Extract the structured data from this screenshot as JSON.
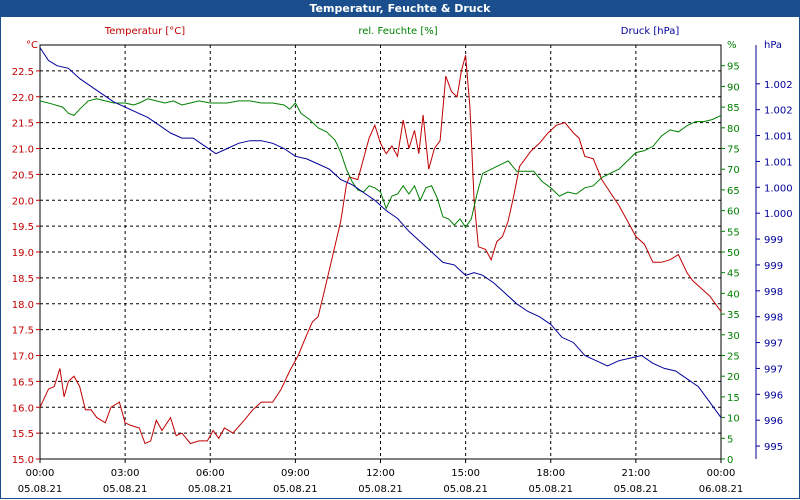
{
  "window": {
    "title": "Temperatur, Feuchte & Druck"
  },
  "chart_data": {
    "type": "line",
    "title": "Temperatur, Feuchte & Druck",
    "x_labels": [
      {
        "time": "00:00",
        "date": "05.08.21"
      },
      {
        "time": "03:00",
        "date": "05.08.21"
      },
      {
        "time": "06:00",
        "date": "05.08.21"
      },
      {
        "time": "09:00",
        "date": "05.08.21"
      },
      {
        "time": "12:00",
        "date": "05.08.21"
      },
      {
        "time": "15:00",
        "date": "05.08.21"
      },
      {
        "time": "18:00",
        "date": "05.08.21"
      },
      {
        "time": "21:00",
        "date": "05.08.21"
      },
      {
        "time": "00:00",
        "date": "06.08.21"
      }
    ],
    "xlim": [
      0,
      24
    ],
    "grid": true,
    "axes": {
      "temp": {
        "label": "Temperatur [°C]",
        "unit": "°C",
        "color": "#c00000",
        "ylim": [
          15.0,
          23.0
        ],
        "ticks": [
          "15.0",
          "15.5",
          "16.0",
          "16.5",
          "17.0",
          "17.5",
          "18.0",
          "18.5",
          "19.0",
          "19.5",
          "20.0",
          "20.5",
          "21.0",
          "21.5",
          "22.0",
          "22.5"
        ]
      },
      "hum": {
        "label": "rel. Feuchte [%]",
        "unit": "%",
        "color": "#008000",
        "ylim": [
          0,
          100
        ],
        "ticks": [
          "0",
          "5",
          "10",
          "15",
          "20",
          "25",
          "30",
          "35",
          "40",
          "45",
          "50",
          "55",
          "60",
          "65",
          "70",
          "75",
          "80",
          "85",
          "90",
          "95"
        ]
      },
      "press": {
        "label": "Druck [hPa]",
        "unit": "hPa",
        "color": "#000099",
        "ylim": [
          994.75,
          1002.75
        ],
        "ticks": [
          "995",
          "996",
          "996",
          "997",
          "997",
          "998",
          "998",
          "999",
          "999",
          "1.000",
          "1.000",
          "1.001",
          "1.001",
          "1.002",
          "1.002"
        ]
      }
    },
    "series": [
      {
        "name": "Temperatur [°C]",
        "axis": "temp",
        "color": "#c00000",
        "points": [
          [
            0,
            16.0
          ],
          [
            0.3,
            16.35
          ],
          [
            0.5,
            16.4
          ],
          [
            0.7,
            16.75
          ],
          [
            0.85,
            16.2
          ],
          [
            1.0,
            16.5
          ],
          [
            1.2,
            16.6
          ],
          [
            1.4,
            16.4
          ],
          [
            1.6,
            15.95
          ],
          [
            1.8,
            15.95
          ],
          [
            2.0,
            15.8
          ],
          [
            2.3,
            15.7
          ],
          [
            2.5,
            16.0
          ],
          [
            2.8,
            16.1
          ],
          [
            3.0,
            15.7
          ],
          [
            3.2,
            15.65
          ],
          [
            3.5,
            15.6
          ],
          [
            3.7,
            15.3
          ],
          [
            3.9,
            15.35
          ],
          [
            4.1,
            15.75
          ],
          [
            4.3,
            15.55
          ],
          [
            4.6,
            15.8
          ],
          [
            4.8,
            15.45
          ],
          [
            5.0,
            15.5
          ],
          [
            5.3,
            15.3
          ],
          [
            5.6,
            15.35
          ],
          [
            5.9,
            15.35
          ],
          [
            6.1,
            15.55
          ],
          [
            6.3,
            15.4
          ],
          [
            6.5,
            15.6
          ],
          [
            6.8,
            15.5
          ],
          [
            7.2,
            15.75
          ],
          [
            7.5,
            15.95
          ],
          [
            7.8,
            16.1
          ],
          [
            8.2,
            16.1
          ],
          [
            8.5,
            16.35
          ],
          [
            8.8,
            16.7
          ],
          [
            9.1,
            17.0
          ],
          [
            9.4,
            17.4
          ],
          [
            9.6,
            17.65
          ],
          [
            9.8,
            17.75
          ],
          [
            10.0,
            18.2
          ],
          [
            10.3,
            18.9
          ],
          [
            10.6,
            19.6
          ],
          [
            10.8,
            20.3
          ],
          [
            10.9,
            20.45
          ],
          [
            11.2,
            20.4
          ],
          [
            11.4,
            20.8
          ],
          [
            11.6,
            21.2
          ],
          [
            11.8,
            21.45
          ],
          [
            12.0,
            21.1
          ],
          [
            12.2,
            20.9
          ],
          [
            12.4,
            21.05
          ],
          [
            12.6,
            20.85
          ],
          [
            12.8,
            21.55
          ],
          [
            13.0,
            21.0
          ],
          [
            13.2,
            21.35
          ],
          [
            13.35,
            20.9
          ],
          [
            13.5,
            21.65
          ],
          [
            13.7,
            20.6
          ],
          [
            13.9,
            21.0
          ],
          [
            14.1,
            21.15
          ],
          [
            14.3,
            22.4
          ],
          [
            14.5,
            22.1
          ],
          [
            14.7,
            22.0
          ],
          [
            14.85,
            22.5
          ],
          [
            15.0,
            22.8
          ],
          [
            15.15,
            21.8
          ],
          [
            15.3,
            20.0
          ],
          [
            15.45,
            19.1
          ],
          [
            15.7,
            19.05
          ],
          [
            15.9,
            18.85
          ],
          [
            16.1,
            19.2
          ],
          [
            16.3,
            19.3
          ],
          [
            16.5,
            19.6
          ],
          [
            16.7,
            20.1
          ],
          [
            16.9,
            20.65
          ],
          [
            17.1,
            20.8
          ],
          [
            17.3,
            20.95
          ],
          [
            17.6,
            21.1
          ],
          [
            17.9,
            21.3
          ],
          [
            18.2,
            21.45
          ],
          [
            18.5,
            21.5
          ],
          [
            18.8,
            21.3
          ],
          [
            19.0,
            21.2
          ],
          [
            19.2,
            20.85
          ],
          [
            19.5,
            20.8
          ],
          [
            19.8,
            20.4
          ],
          [
            20.1,
            20.15
          ],
          [
            20.4,
            19.9
          ],
          [
            20.7,
            19.6
          ],
          [
            21.0,
            19.3
          ],
          [
            21.3,
            19.15
          ],
          [
            21.6,
            18.8
          ],
          [
            21.9,
            18.8
          ],
          [
            22.2,
            18.85
          ],
          [
            22.5,
            18.95
          ],
          [
            22.8,
            18.6
          ],
          [
            23.0,
            18.45
          ],
          [
            23.3,
            18.3
          ],
          [
            23.6,
            18.15
          ],
          [
            24.0,
            17.85
          ]
        ]
      },
      {
        "name": "rel. Feuchte [%]",
        "axis": "hum",
        "color": "#008000",
        "points": [
          [
            0,
            86.5
          ],
          [
            0.4,
            85.8
          ],
          [
            0.8,
            85.0
          ],
          [
            1.0,
            83.5
          ],
          [
            1.2,
            83.0
          ],
          [
            1.4,
            84.5
          ],
          [
            1.7,
            86.5
          ],
          [
            2.0,
            87.0
          ],
          [
            2.3,
            86.5
          ],
          [
            2.6,
            86.0
          ],
          [
            3.0,
            86.0
          ],
          [
            3.3,
            85.5
          ],
          [
            3.5,
            86.0
          ],
          [
            3.8,
            87.0
          ],
          [
            4.1,
            86.5
          ],
          [
            4.4,
            86.0
          ],
          [
            4.7,
            86.5
          ],
          [
            5.0,
            85.5
          ],
          [
            5.3,
            86.0
          ],
          [
            5.6,
            86.5
          ],
          [
            6.0,
            86.0
          ],
          [
            6.3,
            86.0
          ],
          [
            6.6,
            86.0
          ],
          [
            7.0,
            86.5
          ],
          [
            7.4,
            86.5
          ],
          [
            7.8,
            86.0
          ],
          [
            8.2,
            86.0
          ],
          [
            8.6,
            85.5
          ],
          [
            8.8,
            84.5
          ],
          [
            9.0,
            86.0
          ],
          [
            9.2,
            83.5
          ],
          [
            9.5,
            82.0
          ],
          [
            9.8,
            80.0
          ],
          [
            10.1,
            79.0
          ],
          [
            10.4,
            77.0
          ],
          [
            10.6,
            74.0
          ],
          [
            10.8,
            70.0
          ],
          [
            11.0,
            67.0
          ],
          [
            11.2,
            65.0
          ],
          [
            11.4,
            64.5
          ],
          [
            11.6,
            66.0
          ],
          [
            11.8,
            65.5
          ],
          [
            12.0,
            64.5
          ],
          [
            12.2,
            60.5
          ],
          [
            12.4,
            63.5
          ],
          [
            12.6,
            64.0
          ],
          [
            12.8,
            66.0
          ],
          [
            13.0,
            64.0
          ],
          [
            13.2,
            66.0
          ],
          [
            13.4,
            62.5
          ],
          [
            13.6,
            65.5
          ],
          [
            13.8,
            66.0
          ],
          [
            14.0,
            63.0
          ],
          [
            14.2,
            58.5
          ],
          [
            14.4,
            58.0
          ],
          [
            14.6,
            56.5
          ],
          [
            14.8,
            58.0
          ],
          [
            15.0,
            56.0
          ],
          [
            15.2,
            58.0
          ],
          [
            15.4,
            64.0
          ],
          [
            15.6,
            69.0
          ],
          [
            15.9,
            70.0
          ],
          [
            16.2,
            71.0
          ],
          [
            16.5,
            72.0
          ],
          [
            16.8,
            69.5
          ],
          [
            17.1,
            69.5
          ],
          [
            17.4,
            69.5
          ],
          [
            17.7,
            67.0
          ],
          [
            18.0,
            65.5
          ],
          [
            18.3,
            63.5
          ],
          [
            18.6,
            64.5
          ],
          [
            18.9,
            64.0
          ],
          [
            19.2,
            65.5
          ],
          [
            19.5,
            66.0
          ],
          [
            19.8,
            68.0
          ],
          [
            20.1,
            69.0
          ],
          [
            20.4,
            70.0
          ],
          [
            20.7,
            72.0
          ],
          [
            21.0,
            74.0
          ],
          [
            21.3,
            74.5
          ],
          [
            21.6,
            75.5
          ],
          [
            21.9,
            78.0
          ],
          [
            22.2,
            79.5
          ],
          [
            22.5,
            79.0
          ],
          [
            22.8,
            80.5
          ],
          [
            23.1,
            81.5
          ],
          [
            23.4,
            81.5
          ],
          [
            23.7,
            82.0
          ],
          [
            24.0,
            83.0
          ]
        ]
      },
      {
        "name": "Druck [hPa]",
        "axis": "press",
        "color": "#000099",
        "points": [
          [
            0,
            1002.7
          ],
          [
            0.3,
            1002.45
          ],
          [
            0.6,
            1002.35
          ],
          [
            1.0,
            1002.3
          ],
          [
            1.4,
            1002.1
          ],
          [
            1.8,
            1001.95
          ],
          [
            2.2,
            1001.8
          ],
          [
            2.6,
            1001.65
          ],
          [
            3.0,
            1001.55
          ],
          [
            3.4,
            1001.45
          ],
          [
            3.8,
            1001.35
          ],
          [
            4.2,
            1001.2
          ],
          [
            4.6,
            1001.05
          ],
          [
            5.0,
            1000.95
          ],
          [
            5.4,
            1000.95
          ],
          [
            5.8,
            1000.8
          ],
          [
            6.2,
            1000.65
          ],
          [
            6.6,
            1000.75
          ],
          [
            7.0,
            1000.85
          ],
          [
            7.4,
            1000.9
          ],
          [
            7.8,
            1000.9
          ],
          [
            8.2,
            1000.85
          ],
          [
            8.6,
            1000.75
          ],
          [
            9.0,
            1000.6
          ],
          [
            9.4,
            1000.55
          ],
          [
            9.8,
            1000.45
          ],
          [
            10.2,
            1000.35
          ],
          [
            10.6,
            1000.15
          ],
          [
            11.0,
            1000.05
          ],
          [
            11.4,
            999.9
          ],
          [
            11.8,
            999.75
          ],
          [
            12.2,
            999.55
          ],
          [
            12.6,
            999.4
          ],
          [
            13.0,
            999.15
          ],
          [
            13.4,
            998.95
          ],
          [
            13.8,
            998.75
          ],
          [
            14.2,
            998.55
          ],
          [
            14.6,
            998.5
          ],
          [
            15.0,
            998.3
          ],
          [
            15.3,
            998.35
          ],
          [
            15.6,
            998.3
          ],
          [
            16.0,
            998.15
          ],
          [
            16.4,
            997.95
          ],
          [
            16.8,
            997.75
          ],
          [
            17.2,
            997.6
          ],
          [
            17.6,
            997.5
          ],
          [
            18.0,
            997.35
          ],
          [
            18.4,
            997.1
          ],
          [
            18.8,
            997.0
          ],
          [
            19.2,
            996.75
          ],
          [
            19.6,
            996.65
          ],
          [
            20.0,
            996.55
          ],
          [
            20.4,
            996.65
          ],
          [
            20.8,
            996.7
          ],
          [
            21.2,
            996.75
          ],
          [
            21.6,
            996.6
          ],
          [
            22.0,
            996.5
          ],
          [
            22.4,
            996.45
          ],
          [
            22.8,
            996.3
          ],
          [
            23.2,
            996.15
          ],
          [
            23.6,
            995.85
          ],
          [
            24.0,
            995.55
          ]
        ]
      }
    ]
  }
}
